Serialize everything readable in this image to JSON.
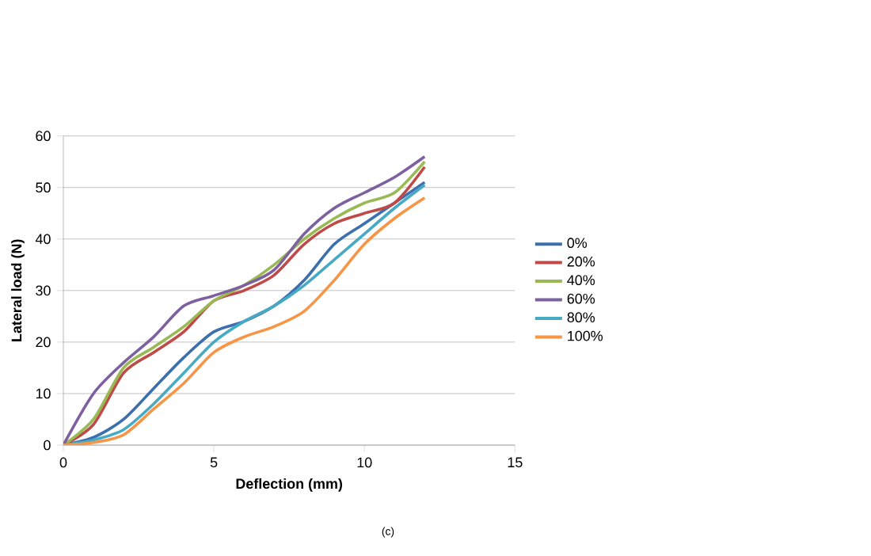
{
  "chart_data": {
    "type": "line",
    "xlabel": "Deflection (mm)",
    "ylabel": "Lateral load (N)",
    "x": [
      0,
      1,
      2,
      3,
      4,
      5,
      6,
      7,
      8,
      9,
      10,
      11,
      12
    ],
    "xlim": [
      0,
      15
    ],
    "xticks": [
      0,
      5,
      10,
      15
    ],
    "ylim": [
      0,
      60
    ],
    "yticks": [
      0,
      10,
      20,
      30,
      40,
      50,
      60
    ],
    "grid": "y",
    "legend": "right",
    "marker": "none",
    "annotations": [
      "(c)"
    ],
    "series": [
      {
        "name": "0%",
        "color": "#3c6fad",
        "values": [
          0,
          1.5,
          5,
          11,
          17,
          22,
          24,
          27,
          32,
          39,
          43,
          47,
          51
        ]
      },
      {
        "name": "20%",
        "color": "#be4b48",
        "values": [
          0,
          4,
          14,
          18,
          22,
          28,
          30,
          33,
          39,
          43,
          45,
          47,
          54
        ]
      },
      {
        "name": "40%",
        "color": "#98b954",
        "values": [
          0,
          5,
          15,
          19,
          23,
          28,
          31,
          35,
          40,
          44,
          47,
          49,
          55
        ]
      },
      {
        "name": "60%",
        "color": "#7d60a0",
        "values": [
          0,
          10,
          16,
          21,
          27,
          29,
          31,
          34,
          41,
          46,
          49,
          52,
          56
        ]
      },
      {
        "name": "80%",
        "color": "#46aac5",
        "values": [
          0,
          1,
          3,
          8,
          14,
          20,
          24,
          27,
          31,
          36,
          41,
          46,
          50.5
        ]
      },
      {
        "name": "100%",
        "color": "#f69546",
        "values": [
          0,
          0.5,
          2,
          7,
          12,
          18,
          21,
          23,
          26,
          32,
          39,
          44,
          48
        ]
      }
    ]
  }
}
